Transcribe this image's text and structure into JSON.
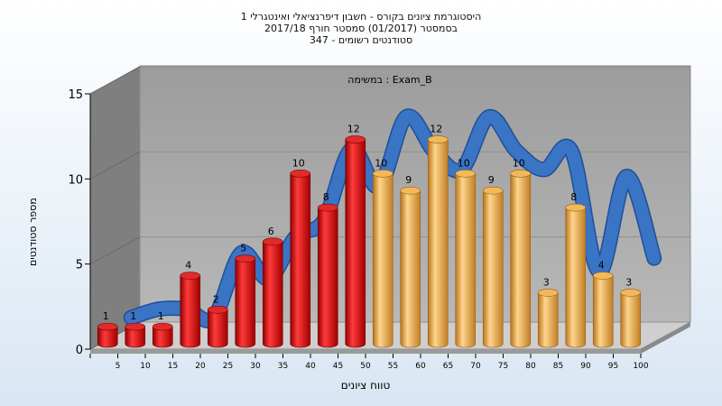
{
  "titles": {
    "line1": "היסטוגרמת ציונים בקורס - חשבון דיפרנציאלי ואינטגרלי 1",
    "line2": "בסמסטר  (01/2017)  סמסטר חורף  2017/18",
    "line3": "סטודנטים רשומים - 347"
  },
  "colors": {
    "bar_red": "#d41a1a",
    "bar_orange": "#e6a640",
    "ribbon": "#3a74c4",
    "wall": "#a8a8a8",
    "side_wall": "#858585",
    "floor": "#c8c8c8"
  },
  "chart_data": {
    "type": "bar",
    "title": "במשימה : Exam_B",
    "xlabel": "טווח ציונים",
    "ylabel": "מספר סטודנטים",
    "ylim": [
      0,
      15
    ],
    "yticks": [
      0,
      5,
      10,
      15
    ],
    "categories": [
      "5",
      "10",
      "15",
      "20",
      "25",
      "30",
      "35",
      "40",
      "45",
      "50",
      "55",
      "60",
      "65",
      "70",
      "75",
      "80",
      "85",
      "90",
      "95",
      "100"
    ],
    "values": [
      1,
      1,
      1,
      4,
      2,
      5,
      6,
      10,
      8,
      12,
      10,
      9,
      12,
      10,
      9,
      10,
      3,
      8,
      4,
      3
    ],
    "bar_colors": [
      "red",
      "red",
      "red",
      "red",
      "red",
      "red",
      "red",
      "red",
      "red",
      "red",
      "orange",
      "orange",
      "orange",
      "orange",
      "orange",
      "orange",
      "orange",
      "orange",
      "orange",
      "orange"
    ],
    "trend_series": {
      "type": "area-ribbon",
      "values": [
        1.0,
        1.5,
        1.5,
        1.0,
        4.8,
        3.3,
        5.8,
        6.7,
        10.9,
        8.7,
        12.8,
        10.8,
        9.7,
        12.8,
        10.8,
        9.7,
        10.8,
        3.7,
        9.3,
        4.5
      ]
    },
    "grid": true,
    "legend": "none"
  }
}
